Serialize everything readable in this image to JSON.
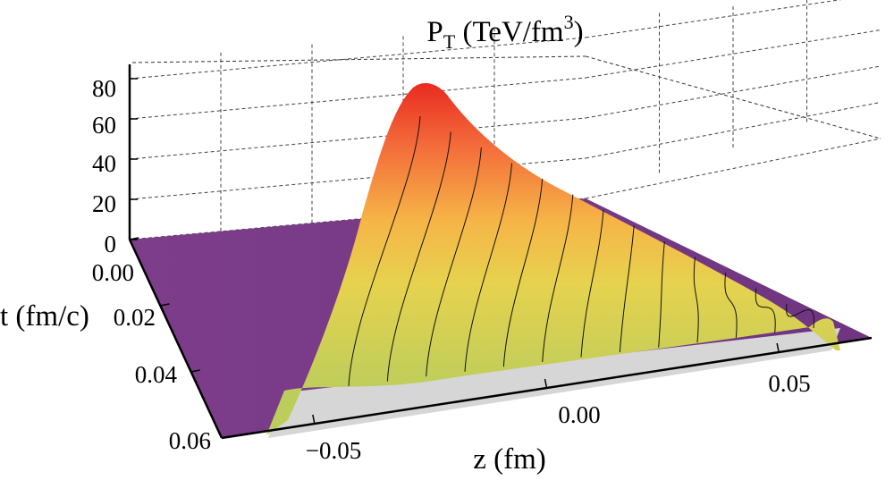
{
  "chart_data": {
    "type": "surface3d",
    "title": {
      "main": "P",
      "sub": "T",
      "units_open": " (TeV/fm",
      "units_sup": "3",
      "units_close": ")"
    },
    "xlabel": "z (fm)",
    "ylabel": "t (fm/c)",
    "zlabel": "P_T (TeV/fm^3)",
    "x_ticks": [
      "−0.05",
      "0.00",
      "0.05"
    ],
    "x_tick_values": [
      -0.05,
      0.0,
      0.05
    ],
    "y_ticks": [
      "0.00",
      "0.02",
      "0.04",
      "0.06"
    ],
    "y_tick_values": [
      0.0,
      0.02,
      0.04,
      0.06
    ],
    "z_ticks": [
      "0",
      "20",
      "40",
      "60",
      "80"
    ],
    "z_tick_values": [
      0,
      20,
      40,
      60,
      80
    ],
    "xlim": [
      -0.07,
      0.07
    ],
    "ylim": [
      0.0,
      0.06
    ],
    "zlim": [
      0,
      85
    ],
    "peak": {
      "z": -0.02,
      "t": 0.0,
      "value": 84
    },
    "grid": true,
    "colors": {
      "floor": "#7a3b87",
      "surface_low": "#bfd15a",
      "surface_mid": "#f3c94a",
      "surface_high": "#ee3b26",
      "side_wall": "#d6d6d6"
    }
  }
}
